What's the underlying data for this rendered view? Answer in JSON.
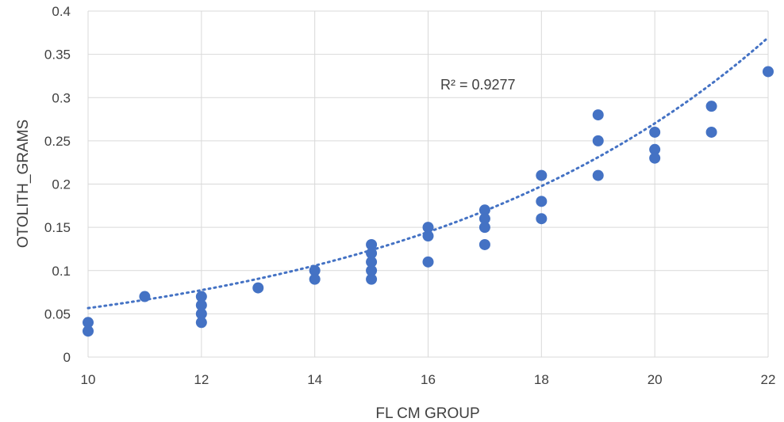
{
  "chart_data": {
    "type": "scatter",
    "xlabel": "FL CM GROUP",
    "ylabel": "OTOLITH_GRAMS",
    "xlim": [
      10,
      22
    ],
    "ylim": [
      0,
      0.4
    ],
    "x_ticks": [
      "10",
      "12",
      "14",
      "16",
      "18",
      "20",
      "22"
    ],
    "y_ticks": [
      "0",
      "0.05",
      "0.1",
      "0.15",
      "0.2",
      "0.25",
      "0.3",
      "0.35",
      "0.4"
    ],
    "grid": true,
    "series": [
      {
        "color": "#4472c4",
        "points": [
          {
            "x": 10,
            "y": 0.04
          },
          {
            "x": 10,
            "y": 0.03
          },
          {
            "x": 11,
            "y": 0.07
          },
          {
            "x": 12,
            "y": 0.07
          },
          {
            "x": 12,
            "y": 0.06
          },
          {
            "x": 12,
            "y": 0.05
          },
          {
            "x": 12,
            "y": 0.04
          },
          {
            "x": 13,
            "y": 0.08
          },
          {
            "x": 14,
            "y": 0.1
          },
          {
            "x": 14,
            "y": 0.09
          },
          {
            "x": 15,
            "y": 0.13
          },
          {
            "x": 15,
            "y": 0.12
          },
          {
            "x": 15,
            "y": 0.11
          },
          {
            "x": 15,
            "y": 0.1
          },
          {
            "x": 15,
            "y": 0.09
          },
          {
            "x": 16,
            "y": 0.15
          },
          {
            "x": 16,
            "y": 0.14
          },
          {
            "x": 16,
            "y": 0.11
          },
          {
            "x": 17,
            "y": 0.17
          },
          {
            "x": 17,
            "y": 0.16
          },
          {
            "x": 17,
            "y": 0.15
          },
          {
            "x": 17,
            "y": 0.13
          },
          {
            "x": 18,
            "y": 0.21
          },
          {
            "x": 18,
            "y": 0.18
          },
          {
            "x": 18,
            "y": 0.16
          },
          {
            "x": 19,
            "y": 0.28
          },
          {
            "x": 19,
            "y": 0.25
          },
          {
            "x": 19,
            "y": 0.21
          },
          {
            "x": 20,
            "y": 0.26
          },
          {
            "x": 20,
            "y": 0.24
          },
          {
            "x": 20,
            "y": 0.23
          },
          {
            "x": 21,
            "y": 0.29
          },
          {
            "x": 21,
            "y": 0.26
          },
          {
            "x": 22,
            "y": 0.33
          }
        ]
      }
    ],
    "trendline": {
      "type": "exponential",
      "a": 0.01186,
      "b": 0.1563,
      "color": "#4472c4",
      "r_squared_label": "R² = 0.9277"
    }
  }
}
